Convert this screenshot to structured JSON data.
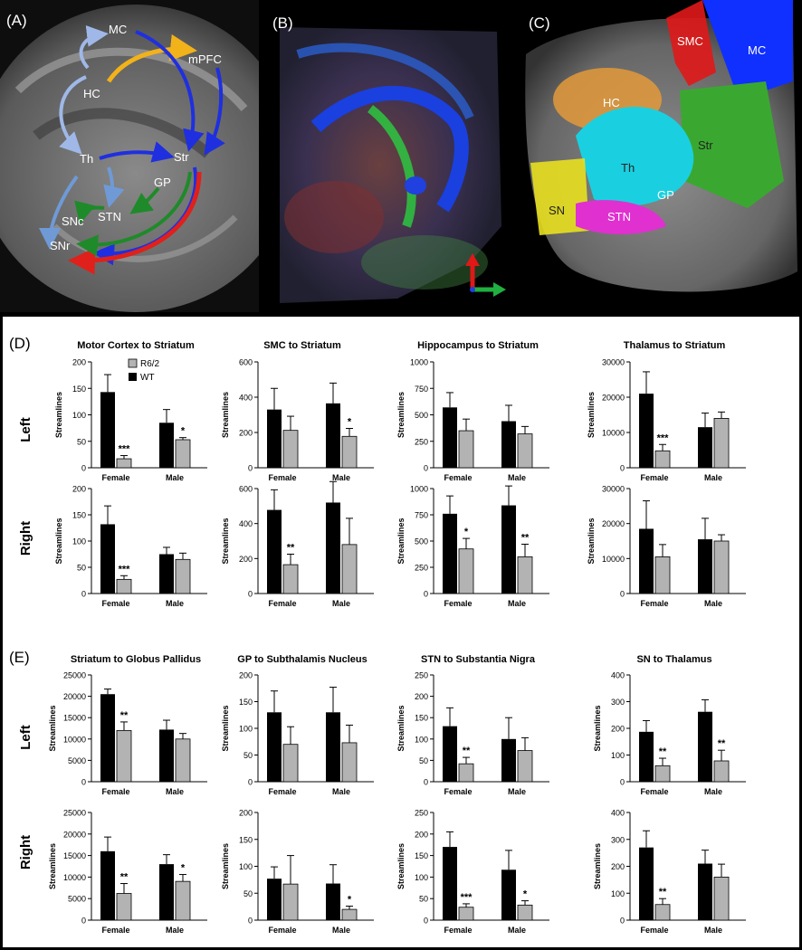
{
  "panels": {
    "a": {
      "label": "(A)",
      "regions": [
        "MC",
        "mPFC",
        "HC",
        "Th",
        "Str",
        "GP",
        "STN",
        "SNc",
        "SNr"
      ],
      "colors": {
        "blue": "#1f2fe0",
        "light_blue": "#9fb8e8",
        "orange": "#f2b21a",
        "green": "#1f8a2a",
        "red": "#e0201a",
        "steel": "#6f9ad6"
      }
    },
    "b": {
      "label": "(B)"
    },
    "c": {
      "label": "(C)",
      "regions": [
        "SMC",
        "MC",
        "HC",
        "Str",
        "Th",
        "GP",
        "SN",
        "STN"
      ],
      "colors": {
        "smc": "#e01818",
        "mc": "#1030ff",
        "hc": "#e39a3a",
        "str": "#3aa830",
        "th": "#1ad0e0",
        "sn": "#e8e020",
        "stn": "#e030d0"
      }
    },
    "d": {
      "label": "(D)"
    },
    "e": {
      "label": "(E)"
    }
  },
  "legend": {
    "r62": "R6/2",
    "wt": "WT",
    "r62_color": "#b3b3b3",
    "wt_color": "#000000"
  },
  "ylabel": "Streamlines",
  "side_labels": {
    "left": "Left",
    "right": "Right"
  },
  "chart_data": [
    {
      "id": "d-mc",
      "type": "bar",
      "title": "Motor Cortex to Striatum",
      "categories": [
        "Female",
        "Male"
      ],
      "ylim": [
        0,
        200
      ],
      "yticks": [
        0,
        50,
        100,
        150,
        200
      ],
      "left": {
        "wt": [
          143,
          85
        ],
        "r62": [
          17,
          53
        ],
        "wt_err": [
          33,
          25
        ],
        "r62_err": [
          6,
          4
        ],
        "sig": [
          "***",
          "*"
        ]
      },
      "right": {
        "wt": [
          132,
          75
        ],
        "r62": [
          27,
          65
        ],
        "wt_err": [
          35,
          13
        ],
        "r62_err": [
          7,
          12
        ],
        "sig": [
          "***",
          ""
        ]
      }
    },
    {
      "id": "d-smc",
      "type": "bar",
      "title": "SMC to Striatum",
      "categories": [
        "Female",
        "Male"
      ],
      "ylim": [
        0,
        600
      ],
      "yticks": [
        0,
        200,
        400,
        600
      ],
      "left": {
        "wt": [
          330,
          365
        ],
        "r62": [
          212,
          178
        ],
        "wt_err": [
          120,
          115
        ],
        "r62_err": [
          80,
          45
        ],
        "sig": [
          "",
          "*"
        ]
      },
      "right": {
        "wt": [
          478,
          520
        ],
        "r62": [
          165,
          280
        ],
        "wt_err": [
          115,
          120
        ],
        "r62_err": [
          60,
          150
        ],
        "sig": [
          "**",
          ""
        ]
      }
    },
    {
      "id": "d-hc",
      "type": "bar",
      "title": "Hippocampus to Striatum",
      "categories": [
        "Female",
        "Male"
      ],
      "ylim": [
        0,
        1000
      ],
      "yticks": [
        0,
        250,
        500,
        750,
        1000
      ],
      "left": {
        "wt": [
          570,
          440
        ],
        "r62": [
          350,
          320
        ],
        "wt_err": [
          140,
          150
        ],
        "r62_err": [
          110,
          70
        ],
        "sig": [
          "",
          ""
        ]
      },
      "right": {
        "wt": [
          760,
          840
        ],
        "r62": [
          425,
          350
        ],
        "wt_err": [
          170,
          185
        ],
        "r62_err": [
          100,
          120
        ],
        "sig": [
          "*",
          "**"
        ]
      }
    },
    {
      "id": "d-th",
      "type": "bar",
      "title": "Thalamus to Striatum",
      "categories": [
        "Female",
        "Male"
      ],
      "ylim": [
        0,
        30000
      ],
      "yticks": [
        0,
        10000,
        20000,
        30000
      ],
      "left": {
        "wt": [
          21000,
          11500
        ],
        "r62": [
          4800,
          14000
        ],
        "wt_err": [
          6200,
          4000
        ],
        "r62_err": [
          1800,
          1800
        ],
        "sig": [
          "***",
          ""
        ]
      },
      "right": {
        "wt": [
          18500,
          15500
        ],
        "r62": [
          10500,
          15000
        ],
        "wt_err": [
          8000,
          6000
        ],
        "r62_err": [
          3500,
          1800
        ],
        "sig": [
          "",
          ""
        ]
      }
    },
    {
      "id": "e-str",
      "type": "bar",
      "title": "Striatum to Globus Pallidus",
      "categories": [
        "Female",
        "Male"
      ],
      "ylim": [
        0,
        25000
      ],
      "yticks": [
        0,
        5000,
        10000,
        15000,
        20000,
        25000
      ],
      "left": {
        "wt": [
          20500,
          12200
        ],
        "r62": [
          12000,
          10000
        ],
        "wt_err": [
          1200,
          2200
        ],
        "r62_err": [
          2000,
          1300
        ],
        "sig": [
          "**",
          ""
        ]
      },
      "right": {
        "wt": [
          16000,
          13000
        ],
        "r62": [
          6200,
          9000
        ],
        "wt_err": [
          3300,
          2200
        ],
        "r62_err": [
          2300,
          1600
        ],
        "sig": [
          "**",
          "*"
        ]
      }
    },
    {
      "id": "e-gp",
      "type": "bar",
      "title": "GP to Subthalamis Nucleus",
      "categories": [
        "Female",
        "Male"
      ],
      "ylim": [
        0,
        200
      ],
      "yticks": [
        0,
        50,
        100,
        150,
        200
      ],
      "left": {
        "wt": [
          130,
          130
        ],
        "r62": [
          70,
          73
        ],
        "wt_err": [
          40,
          47
        ],
        "r62_err": [
          33,
          33
        ],
        "sig": [
          "",
          ""
        ]
      },
      "right": {
        "wt": [
          77,
          68
        ],
        "r62": [
          67,
          20
        ],
        "wt_err": [
          22,
          35
        ],
        "r62_err": [
          53,
          6
        ],
        "sig": [
          "",
          "*"
        ]
      }
    },
    {
      "id": "e-stn",
      "type": "bar",
      "title": "STN to Substantia Nigra",
      "categories": [
        "Female",
        "Male"
      ],
      "ylim": [
        0,
        250
      ],
      "yticks": [
        0,
        50,
        100,
        150,
        200,
        250
      ],
      "left": {
        "wt": [
          130,
          100
        ],
        "r62": [
          42,
          73
        ],
        "wt_err": [
          43,
          50
        ],
        "r62_err": [
          15,
          30
        ],
        "sig": [
          "**",
          ""
        ]
      },
      "right": {
        "wt": [
          170,
          117
        ],
        "r62": [
          30,
          35
        ],
        "wt_err": [
          35,
          45
        ],
        "r62_err": [
          8,
          10
        ],
        "sig": [
          "***",
          "*"
        ]
      }
    },
    {
      "id": "e-sn",
      "type": "bar",
      "title": "SN to Thalamus",
      "categories": [
        "Female",
        "Male"
      ],
      "ylim": [
        0,
        400
      ],
      "yticks": [
        0,
        100,
        200,
        300,
        400
      ],
      "left": {
        "wt": [
          187,
          262
        ],
        "r62": [
          60,
          78
        ],
        "wt_err": [
          42,
          45
        ],
        "r62_err": [
          28,
          40
        ],
        "sig": [
          "**",
          "**"
        ]
      },
      "right": {
        "wt": [
          270,
          210
        ],
        "r62": [
          58,
          160
        ],
        "wt_err": [
          62,
          50
        ],
        "r62_err": [
          22,
          48
        ],
        "sig": [
          "**",
          ""
        ]
      }
    }
  ]
}
